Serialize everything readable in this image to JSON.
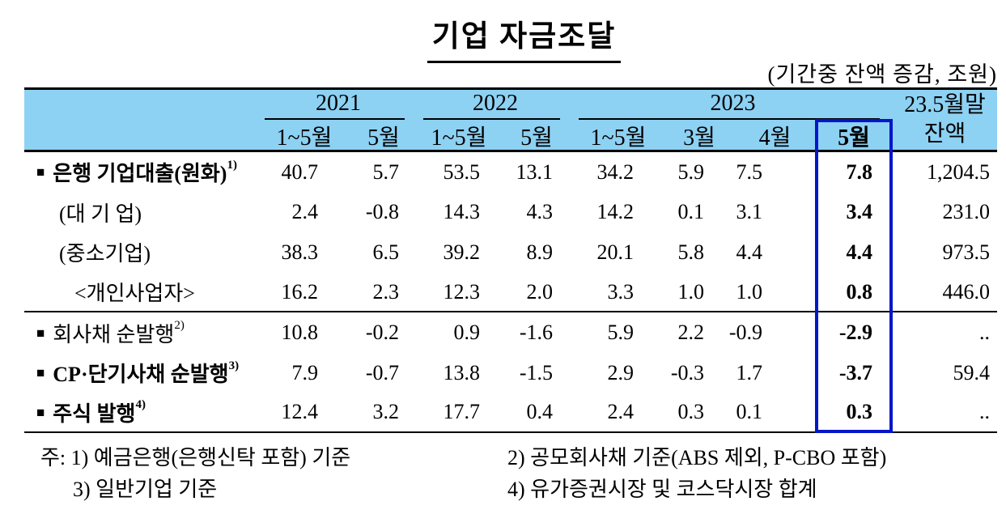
{
  "page": {
    "title": "기업 자금조달",
    "unit_note": "(기간중 잔액 증감, 조원)"
  },
  "colors": {
    "header_bg": "#8DD1F3",
    "highlight_border": "#0016C8",
    "rule": "#000000"
  },
  "table": {
    "col_groups": [
      {
        "label": "2021",
        "cols": [
          "1~5월",
          "5월"
        ]
      },
      {
        "label": "2022",
        "cols": [
          "1~5월",
          "5월"
        ]
      },
      {
        "label": "2023",
        "cols": [
          "1~5월",
          "3월",
          "4월",
          "5월"
        ]
      }
    ],
    "balance_header": {
      "line1": "23.5월말",
      "line2": "잔액"
    },
    "highlighted_column": "2023 5월",
    "rule_after_rows": [
      3,
      6
    ],
    "rows": [
      {
        "marker": "■",
        "label": "은행 기업대출(원화)",
        "sup": "1)",
        "indent": 0,
        "bold": true,
        "values": [
          "40.7",
          "5.7",
          "53.5",
          "13.1",
          "34.2",
          "5.9",
          "7.5",
          "7.8",
          "1,204.5"
        ]
      },
      {
        "marker": "",
        "label": "(대 기 업)",
        "sup": "",
        "indent": 1,
        "bold": false,
        "values": [
          "2.4",
          "-0.8",
          "14.3",
          "4.3",
          "14.2",
          "0.1",
          "3.1",
          "3.4",
          "231.0"
        ]
      },
      {
        "marker": "",
        "label": "(중소기업)",
        "sup": "",
        "indent": 1,
        "bold": false,
        "values": [
          "38.3",
          "6.5",
          "39.2",
          "8.9",
          "20.1",
          "5.8",
          "4.4",
          "4.4",
          "973.5"
        ]
      },
      {
        "marker": "",
        "label": "<개인사업자>",
        "sup": "",
        "indent": 2,
        "bold": false,
        "values": [
          "16.2",
          "2.3",
          "12.3",
          "2.0",
          "3.3",
          "1.0",
          "1.0",
          "0.8",
          "446.0"
        ]
      },
      {
        "marker": "■",
        "label": "회사채 순발행",
        "sup": "2)",
        "indent": 0,
        "bold": false,
        "values": [
          "10.8",
          "-0.2",
          "0.9",
          "-1.6",
          "5.9",
          "2.2",
          "-0.9",
          "-2.9",
          ".."
        ]
      },
      {
        "marker": "■",
        "label": "CP·단기사채 순발행",
        "sup": "3)",
        "indent": 0,
        "bold": true,
        "values": [
          "7.9",
          "-0.7",
          "13.8",
          "-1.5",
          "2.9",
          "-0.3",
          "1.7",
          "-3.7",
          "59.4"
        ]
      },
      {
        "marker": "■",
        "label": "주식 발행",
        "sup": "4)",
        "indent": 0,
        "bold": true,
        "values": [
          "12.4",
          "3.2",
          "17.7",
          "0.4",
          "2.4",
          "0.3",
          "0.1",
          "0.3",
          ".."
        ]
      }
    ]
  },
  "footnotes": {
    "left": [
      "주: 1) 예금은행(은행신탁 포함) 기준",
      "3) 일반기업 기준"
    ],
    "right": [
      "2) 공모회사채 기준(ABS 제외, P-CBO 포함)",
      "4) 유가증권시장 및 코스닥시장 합계"
    ]
  }
}
